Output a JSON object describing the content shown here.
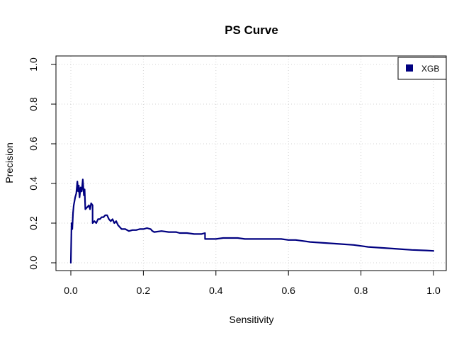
{
  "chart_data": {
    "type": "line",
    "title": "PS Curve",
    "xlabel": "Sensitivity",
    "ylabel": "Precision",
    "xlim": [
      0,
      1
    ],
    "ylim": [
      0,
      1
    ],
    "x_ticks": [
      "0.0",
      "0.2",
      "0.4",
      "0.6",
      "0.8",
      "1.0"
    ],
    "y_ticks": [
      "0.0",
      "0.2",
      "0.4",
      "0.6",
      "0.8",
      "1.0"
    ],
    "grid": true,
    "grid_style": "dotted",
    "legend_position": "top-right",
    "series": [
      {
        "name": "XGB",
        "color": "#000080",
        "points": [
          [
            0.0,
            0.0
          ],
          [
            0.002,
            0.2
          ],
          [
            0.004,
            0.17
          ],
          [
            0.006,
            0.25
          ],
          [
            0.008,
            0.29
          ],
          [
            0.01,
            0.31
          ],
          [
            0.012,
            0.33
          ],
          [
            0.015,
            0.35
          ],
          [
            0.018,
            0.41
          ],
          [
            0.02,
            0.36
          ],
          [
            0.022,
            0.39
          ],
          [
            0.024,
            0.33
          ],
          [
            0.027,
            0.38
          ],
          [
            0.03,
            0.36
          ],
          [
            0.033,
            0.42
          ],
          [
            0.036,
            0.34
          ],
          [
            0.038,
            0.37
          ],
          [
            0.04,
            0.27
          ],
          [
            0.045,
            0.28
          ],
          [
            0.05,
            0.29
          ],
          [
            0.053,
            0.27
          ],
          [
            0.056,
            0.3
          ],
          [
            0.06,
            0.29
          ],
          [
            0.06,
            0.2
          ],
          [
            0.065,
            0.21
          ],
          [
            0.07,
            0.2
          ],
          [
            0.075,
            0.22
          ],
          [
            0.08,
            0.22
          ],
          [
            0.085,
            0.23
          ],
          [
            0.09,
            0.23
          ],
          [
            0.095,
            0.24
          ],
          [
            0.1,
            0.24
          ],
          [
            0.105,
            0.22
          ],
          [
            0.11,
            0.21
          ],
          [
            0.115,
            0.22
          ],
          [
            0.12,
            0.2
          ],
          [
            0.125,
            0.21
          ],
          [
            0.13,
            0.19
          ],
          [
            0.135,
            0.18
          ],
          [
            0.14,
            0.17
          ],
          [
            0.15,
            0.17
          ],
          [
            0.16,
            0.16
          ],
          [
            0.17,
            0.165
          ],
          [
            0.18,
            0.165
          ],
          [
            0.19,
            0.17
          ],
          [
            0.2,
            0.17
          ],
          [
            0.21,
            0.175
          ],
          [
            0.22,
            0.17
          ],
          [
            0.225,
            0.16
          ],
          [
            0.23,
            0.155
          ],
          [
            0.25,
            0.16
          ],
          [
            0.27,
            0.155
          ],
          [
            0.29,
            0.155
          ],
          [
            0.3,
            0.15
          ],
          [
            0.32,
            0.15
          ],
          [
            0.34,
            0.145
          ],
          [
            0.36,
            0.145
          ],
          [
            0.37,
            0.15
          ],
          [
            0.37,
            0.12
          ],
          [
            0.4,
            0.12
          ],
          [
            0.42,
            0.125
          ],
          [
            0.46,
            0.125
          ],
          [
            0.48,
            0.12
          ],
          [
            0.5,
            0.12
          ],
          [
            0.52,
            0.12
          ],
          [
            0.55,
            0.12
          ],
          [
            0.58,
            0.12
          ],
          [
            0.6,
            0.115
          ],
          [
            0.62,
            0.115
          ],
          [
            0.64,
            0.11
          ],
          [
            0.66,
            0.105
          ],
          [
            0.7,
            0.1
          ],
          [
            0.74,
            0.095
          ],
          [
            0.78,
            0.09
          ],
          [
            0.8,
            0.085
          ],
          [
            0.82,
            0.08
          ],
          [
            0.86,
            0.075
          ],
          [
            0.9,
            0.07
          ],
          [
            0.94,
            0.065
          ],
          [
            0.98,
            0.062
          ],
          [
            1.0,
            0.06
          ]
        ]
      }
    ]
  }
}
